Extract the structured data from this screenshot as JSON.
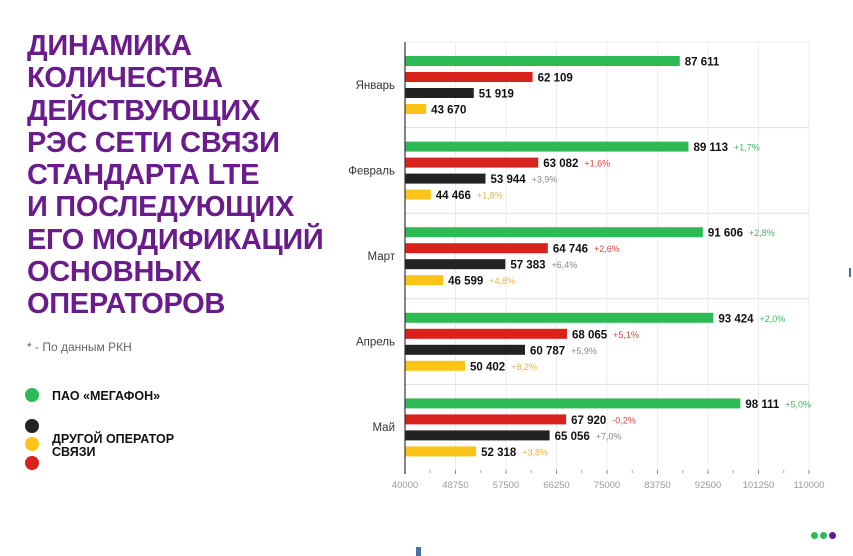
{
  "title_lines": [
    "ДИНАМИКА",
    "КОЛИЧЕСТВА",
    "ДЕЙСТВУЮЩИХ",
    "РЭС СЕТИ СВЯЗИ",
    "СТАНДАРТА LTE",
    "И ПОСЛЕДУЮЩИХ",
    "ЕГО МОДИФИКАЦИЙ",
    "ОСНОВНЫХ",
    "ОПЕРАТОРОВ"
  ],
  "footnote": "* - По данным РКН",
  "legend": [
    {
      "label": "ПАО «МЕГАФОН»",
      "colors": [
        "#2dba55"
      ]
    },
    {
      "label": "ДРУГОЙ ОПЕРАТОР СВЯЗИ",
      "colors": [
        "#222222",
        "#fcc419",
        "#d7231c"
      ]
    }
  ],
  "brand_dots": [
    "#2dba55",
    "#2dba55",
    "#6a1b8c"
  ],
  "chart_data": {
    "type": "bar",
    "orientation": "horizontal",
    "categories": [
      "Январь",
      "Февраль",
      "Март",
      "Апрель",
      "Май"
    ],
    "xlim": [
      40000,
      110000
    ],
    "xticks": [
      "40000",
      "48750",
      "57500",
      "66250",
      "75000",
      "83750",
      "92500",
      "101250",
      "110000"
    ],
    "grid": true,
    "series": [
      {
        "color": "#2dba55",
        "pct_color": "#3fb865",
        "values": [
          87611,
          89113,
          91606,
          93424,
          98111
        ],
        "labels": [
          "87 611",
          "89 113",
          "91 606",
          "93 424",
          "98 111"
        ],
        "changes": [
          "",
          "+1,7%",
          "+2,8%",
          "+2,0%",
          "+5,0%"
        ]
      },
      {
        "color": "#d7231c",
        "pct_color": "#d9453e",
        "values": [
          62109,
          63082,
          64746,
          68065,
          67920
        ],
        "labels": [
          "62 109",
          "63 082",
          "64 746",
          "68 065",
          "67 920"
        ],
        "changes": [
          "",
          "+1,6%",
          "+2,6%",
          "+5,1%",
          "-0,2%"
        ]
      },
      {
        "color": "#222222",
        "pct_color": "#888888",
        "values": [
          51919,
          53944,
          57383,
          60787,
          65056
        ],
        "labels": [
          "51 919",
          "53 944",
          "57 383",
          "60 787",
          "65 056"
        ],
        "changes": [
          "",
          "+3,9%",
          "+6,4%",
          "+5,9%",
          "+7,0%"
        ]
      },
      {
        "color": "#fcc419",
        "pct_color": "#e8b43a",
        "values": [
          43670,
          44466,
          46599,
          50402,
          52318
        ],
        "labels": [
          "43 670",
          "44 466",
          "46 599",
          "50 402",
          "52 318"
        ],
        "changes": [
          "",
          "+1,8%",
          "+4,8%",
          "+8,2%",
          "+3,8%"
        ]
      }
    ]
  }
}
